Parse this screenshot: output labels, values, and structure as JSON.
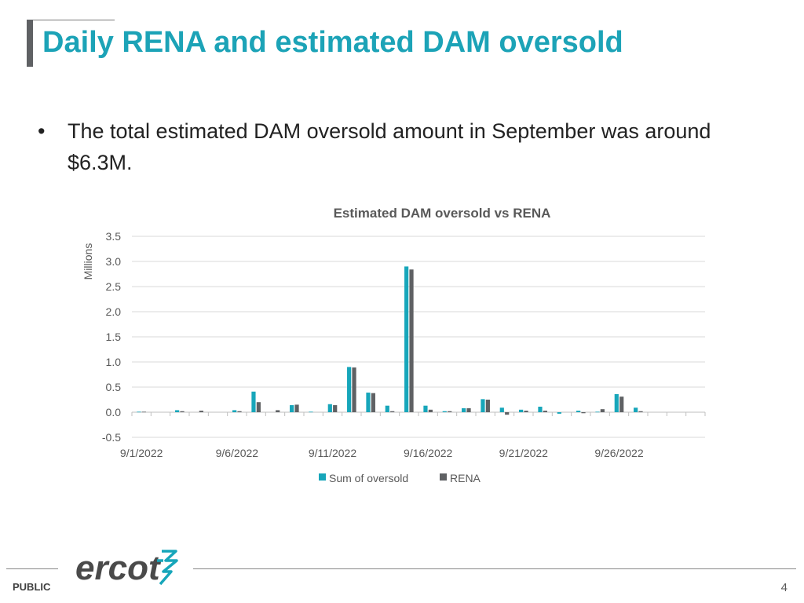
{
  "slide": {
    "title": "Daily RENA and estimated DAM oversold",
    "bullet_symbol": "•",
    "bullets": [
      "The total estimated DAM oversold amount in September was around $6.3M."
    ],
    "footer_label": "PUBLIC",
    "logo_text": "ercot",
    "page_number": "4"
  },
  "chart_data": {
    "type": "bar",
    "title": "Estimated DAM oversold vs RENA",
    "ylabel": "Millions",
    "ylim": [
      -0.5,
      3.5
    ],
    "yticks": [
      3.5,
      3.0,
      2.5,
      2.0,
      1.5,
      1.0,
      0.5,
      0.0,
      -0.5
    ],
    "ytick_labels": [
      "3.5",
      "3.0",
      "2.5",
      "2.0",
      "1.5",
      "1.0",
      "0.5",
      "0.0",
      "-0.5"
    ],
    "x": [
      "9/1/2022",
      "9/2/2022",
      "9/3/2022",
      "9/4/2022",
      "9/5/2022",
      "9/6/2022",
      "9/7/2022",
      "9/8/2022",
      "9/9/2022",
      "9/10/2022",
      "9/11/2022",
      "9/12/2022",
      "9/13/2022",
      "9/14/2022",
      "9/15/2022",
      "9/16/2022",
      "9/17/2022",
      "9/18/2022",
      "9/19/2022",
      "9/20/2022",
      "9/21/2022",
      "9/22/2022",
      "9/23/2022",
      "9/24/2022",
      "9/25/2022",
      "9/26/2022",
      "9/27/2022",
      "9/28/2022",
      "9/29/2022",
      "9/30/2022"
    ],
    "xtick_labels": [
      "9/1/2022",
      "9/6/2022",
      "9/11/2022",
      "9/16/2022",
      "9/21/2022",
      "9/26/2022"
    ],
    "series": [
      {
        "name": "Sum of oversold",
        "color": "#17a6ba",
        "values": [
          0.01,
          0,
          0.04,
          0,
          0,
          0.04,
          0.41,
          0,
          0.14,
          0.01,
          0.16,
          0.9,
          0.39,
          0.13,
          2.9,
          0.13,
          0.02,
          0.08,
          0.26,
          0.09,
          0.05,
          0.11,
          -0.03,
          0.03,
          0.01,
          0.36,
          0.09,
          0,
          0,
          0
        ]
      },
      {
        "name": "RENA",
        "color": "#5f6164",
        "values": [
          0.01,
          0,
          0.02,
          0.03,
          0,
          0.02,
          0.2,
          0.04,
          0.15,
          0,
          0.14,
          0.89,
          0.38,
          0.02,
          2.84,
          0.05,
          0.02,
          0.08,
          0.25,
          -0.05,
          0.03,
          0.03,
          0,
          -0.02,
          0.06,
          0.31,
          0.02,
          0,
          0,
          0
        ]
      }
    ],
    "legend_position": "bottom",
    "grid": true
  }
}
